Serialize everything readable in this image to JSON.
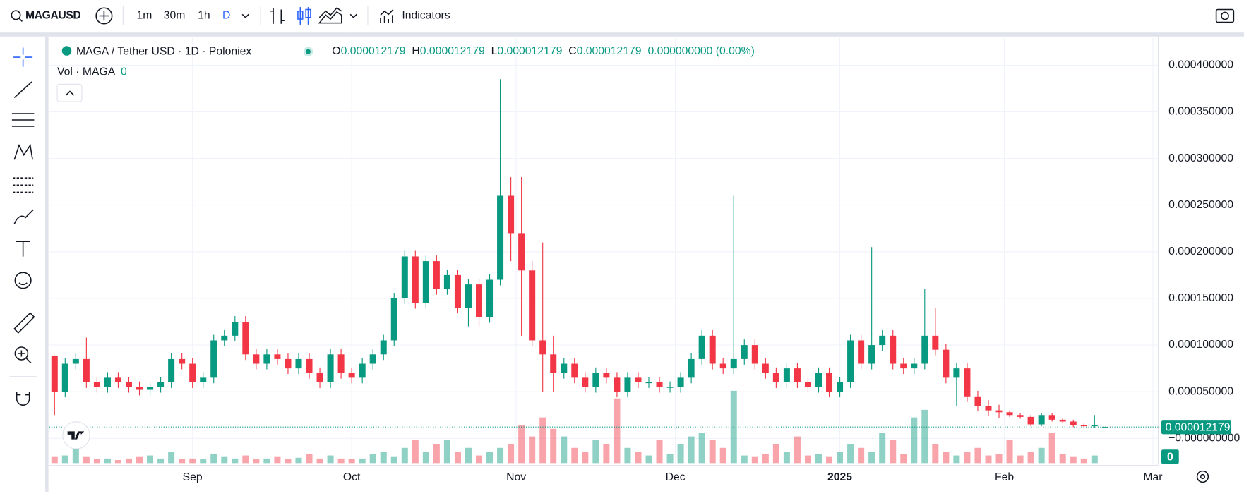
{
  "toolbar": {
    "symbol": "MAGAUSD",
    "intervals": [
      "1m",
      "30m",
      "1h",
      "D"
    ],
    "indicators": "Indicators"
  },
  "chart_data": {
    "type": "candlestick",
    "title": "MAGA / Tether USD · 1D · Poloniex",
    "legend_labels": [
      "O",
      "H",
      "L",
      "C"
    ],
    "change_label": "0.000000000 (0.00%)",
    "volume_title": "Vol · MAGA",
    "up_color": "#089981",
    "down_color": "#f23645",
    "open": [
      8.8e-05,
      5e-05,
      8e-05,
      8.5e-05,
      6e-05,
      5.5e-05,
      6.5e-05,
      6e-05,
      5.5e-05,
      5.2e-05,
      5.5e-05,
      6e-05,
      8.5e-05,
      8e-05,
      6e-05,
      6.5e-05,
      0.000105,
      0.00011,
      0.000125,
      9e-05,
      8e-05,
      9e-05,
      8.5e-05,
      7.5e-05,
      8.5e-05,
      7e-05,
      6e-05,
      9e-05,
      7e-05,
      6.5e-05,
      8e-05,
      9e-05,
      0.000105,
      0.00015,
      0.000195,
      0.000145,
      0.00019,
      0.00016,
      0.000175,
      0.00014,
      0.000165,
      0.00013,
      0.00017,
      0.00026,
      0.00022,
      0.00018,
      0.000105,
      9e-05,
      7e-05,
      8e-05,
      6.5e-05,
      5.5e-05,
      7e-05,
      6.5e-05,
      5e-05,
      6.5e-05,
      6e-05,
      6e-05,
      5.5e-05,
      5.5e-05,
      6.5e-05,
      8.5e-05,
      0.00011,
      8e-05,
      7.5e-05,
      8.5e-05,
      0.0001,
      8e-05,
      7e-05,
      6e-05,
      7.5e-05,
      6e-05,
      5.5e-05,
      7e-05,
      5e-05,
      6e-05,
      0.000105,
      8e-05,
      0.0001,
      0.00011,
      8e-05,
      7.5e-05,
      8e-05,
      0.00011,
      9.5e-05,
      6.5e-05,
      7.5e-05,
      4.5e-05,
      3.5e-05,
      3e-05,
      2.8e-05,
      2.5e-05,
      2.3e-05,
      1.5e-05,
      2.5e-05,
      2e-05,
      1.8e-05,
      1.4e-05,
      1.3e-05,
      1.2179e-05
    ],
    "high": [
      8.9e-05,
      8.6e-05,
      9.1e-05,
      0.000108,
      6.6e-05,
      7.1e-05,
      7.1e-05,
      6.6e-05,
      6.1e-05,
      6.1e-05,
      6.6e-05,
      9.1e-05,
      9.1e-05,
      8.6e-05,
      7.1e-05,
      0.000111,
      0.000116,
      0.000131,
      0.000131,
      9.6e-05,
      9.6e-05,
      9.6e-05,
      9.1e-05,
      9.1e-05,
      9.1e-05,
      7.6e-05,
      9.6e-05,
      9.6e-05,
      7.6e-05,
      8.6e-05,
      9.6e-05,
      0.000111,
      0.000156,
      0.000201,
      0.000201,
      0.000196,
      0.000196,
      0.000181,
      0.000181,
      0.000171,
      0.000171,
      0.000176,
      0.000385,
      0.00028,
      0.00028,
      0.00019,
      0.00021,
      0.00011,
      8.6e-05,
      8.6e-05,
      7.1e-05,
      7.6e-05,
      7.6e-05,
      7.1e-05,
      7.1e-05,
      7.1e-05,
      6.6e-05,
      6.6e-05,
      6.1e-05,
      7.1e-05,
      9.1e-05,
      0.000116,
      0.000116,
      8.6e-05,
      0.00026,
      0.000106,
      0.000106,
      8.6e-05,
      7.6e-05,
      8.1e-05,
      8.1e-05,
      6.6e-05,
      7.6e-05,
      7.6e-05,
      6.6e-05,
      0.000111,
      0.000111,
      0.000205,
      0.000116,
      0.000116,
      8.6e-05,
      8.6e-05,
      0.00016,
      0.00014,
      0.000101,
      8.1e-05,
      8.1e-05,
      5.1e-05,
      4.1e-05,
      3.6e-05,
      3e-05,
      2.7e-05,
      2.5e-05,
      2.7e-05,
      2.7e-05,
      2.2e-05,
      2e-05,
      1.6e-05,
      2.5e-05,
      1.2179e-05
    ],
    "low": [
      2.5e-05,
      4.4e-05,
      7.4e-05,
      5.4e-05,
      4.9e-05,
      4.9e-05,
      5.4e-05,
      4.9e-05,
      4.6e-05,
      4.6e-05,
      4.9e-05,
      5.4e-05,
      7.4e-05,
      5.4e-05,
      5.4e-05,
      5.9e-05,
      9.9e-05,
      0.000104,
      8.4e-05,
      7.4e-05,
      7.4e-05,
      7.9e-05,
      6.9e-05,
      6.9e-05,
      6.4e-05,
      5.4e-05,
      5.4e-05,
      6.4e-05,
      5.9e-05,
      5.9e-05,
      7.4e-05,
      8.4e-05,
      9.9e-05,
      0.000144,
      0.000139,
      0.000139,
      0.000154,
      0.000154,
      0.000134,
      0.00012,
      0.00012,
      0.000124,
      0.000164,
      0.00019,
      0.00011,
      9.9e-05,
      5e-05,
      5e-05,
      6.4e-05,
      5.9e-05,
      4.9e-05,
      4.9e-05,
      5.9e-05,
      4.4e-05,
      4.4e-05,
      5.4e-05,
      5.4e-05,
      4.9e-05,
      4.9e-05,
      4.9e-05,
      5.9e-05,
      7.9e-05,
      7.4e-05,
      6.9e-05,
      6.9e-05,
      7.9e-05,
      7.4e-05,
      6.4e-05,
      5.4e-05,
      5.4e-05,
      5.4e-05,
      4.9e-05,
      4.9e-05,
      4.4e-05,
      4.4e-05,
      5.4e-05,
      7.4e-05,
      7.4e-05,
      9.4e-05,
      7.4e-05,
      6.9e-05,
      6.9e-05,
      7.4e-05,
      8.9e-05,
      5.9e-05,
      3.5e-05,
      3.9e-05,
      2.9e-05,
      2.4e-05,
      2.2e-05,
      2.3e-05,
      2.1e-05,
      1.3e-05,
      1.3e-05,
      1.8e-05,
      1.6e-05,
      1.2e-05,
      1.1e-05,
      1.1e-05,
      1.2179e-05
    ],
    "close": [
      5e-05,
      8e-05,
      8.5e-05,
      6e-05,
      5.5e-05,
      6.5e-05,
      6e-05,
      5.5e-05,
      5.2e-05,
      5.5e-05,
      6e-05,
      8.5e-05,
      8e-05,
      6e-05,
      6.5e-05,
      0.000105,
      0.00011,
      0.000125,
      9e-05,
      8e-05,
      9e-05,
      8.5e-05,
      7.5e-05,
      8.5e-05,
      7e-05,
      6e-05,
      9e-05,
      7e-05,
      6.5e-05,
      8e-05,
      9e-05,
      0.000105,
      0.00015,
      0.000195,
      0.000145,
      0.00019,
      0.00016,
      0.000175,
      0.00014,
      0.000165,
      0.00013,
      0.00017,
      0.00026,
      0.00022,
      0.00018,
      0.000105,
      9e-05,
      7e-05,
      8e-05,
      6.5e-05,
      5.5e-05,
      7e-05,
      6.5e-05,
      5e-05,
      6.5e-05,
      6e-05,
      6e-05,
      5.5e-05,
      5.5e-05,
      6.5e-05,
      8.5e-05,
      0.00011,
      8e-05,
      7.5e-05,
      8.5e-05,
      0.0001,
      8e-05,
      7e-05,
      6e-05,
      7.5e-05,
      6e-05,
      5.5e-05,
      7e-05,
      5e-05,
      6e-05,
      0.000105,
      8e-05,
      0.0001,
      0.00011,
      8e-05,
      7.5e-05,
      8e-05,
      0.00011,
      9.5e-05,
      6.5e-05,
      7.5e-05,
      4.5e-05,
      3.5e-05,
      3e-05,
      2.8e-05,
      2.5e-05,
      2.3e-05,
      1.5e-05,
      2.5e-05,
      2e-05,
      1.8e-05,
      1.4e-05,
      1.3e-05,
      1.4e-05,
      1.2179e-05
    ],
    "volume": [
      8,
      10,
      30,
      8,
      5,
      6,
      4,
      6,
      8,
      10,
      6,
      15,
      5,
      6,
      5,
      12,
      8,
      6,
      10,
      5,
      6,
      8,
      5,
      7,
      12,
      6,
      10,
      6,
      5,
      6,
      12,
      15,
      8,
      20,
      30,
      15,
      25,
      30,
      15,
      20,
      10,
      15,
      20,
      25,
      50,
      35,
      60,
      45,
      35,
      20,
      15,
      30,
      25,
      85,
      20,
      15,
      10,
      30,
      12,
      25,
      35,
      40,
      30,
      20,
      95,
      10,
      8,
      12,
      25,
      15,
      35,
      10,
      12,
      8,
      15,
      25,
      20,
      15,
      40,
      30,
      12,
      60,
      70,
      25,
      15,
      10,
      15,
      20,
      10,
      12,
      30,
      10,
      15,
      20,
      40,
      12,
      8,
      6,
      10,
      0
    ],
    "xlim": [
      -0.5,
      104
    ],
    "xticks": [
      {
        "value": 13,
        "label": "Sep"
      },
      {
        "value": 28,
        "label": "Oct"
      },
      {
        "value": 43.5,
        "label": "Nov"
      },
      {
        "value": 58.5,
        "label": "Dec"
      },
      {
        "value": 74,
        "label": "2025"
      },
      {
        "value": 89.5,
        "label": "Feb"
      },
      {
        "value": 103.5,
        "label": "Mar"
      }
    ],
    "ylim": [
      -2.82e-05,
      0.000429
    ],
    "yticks": [
      {
        "value": 0,
        "label": "−0.000000000"
      },
      {
        "value": 5e-05,
        "label": "0.000050000"
      },
      {
        "value": 0.0001,
        "label": "0.000100000"
      },
      {
        "value": 0.00015,
        "label": "0.000150000"
      },
      {
        "value": 0.0002,
        "label": "0.000200000"
      },
      {
        "value": 0.00025,
        "label": "0.000250000"
      },
      {
        "value": 0.0003,
        "label": "0.000300000"
      },
      {
        "value": 0.00035,
        "label": "0.000350000"
      },
      {
        "value": 0.0004,
        "label": "0.000400000"
      }
    ],
    "grid": true
  }
}
